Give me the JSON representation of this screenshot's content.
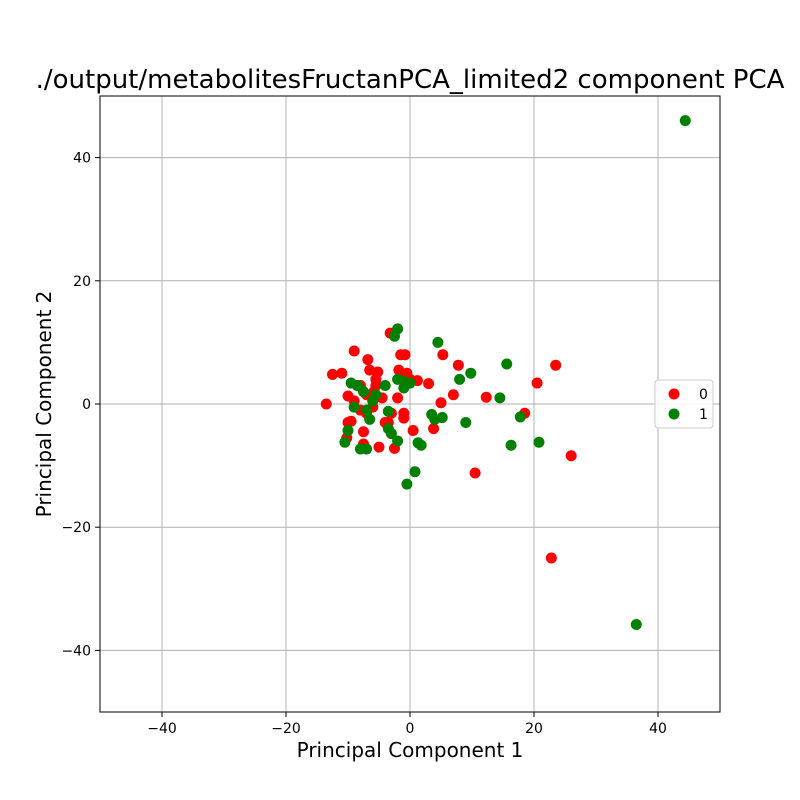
{
  "chart_data": {
    "type": "scatter",
    "title": "./output/metabolitesFructanPCA_limited2 component PCA",
    "xlabel": "Principal Component 1",
    "ylabel": "Principal Component 2",
    "xlim": [
      -50,
      50
    ],
    "ylim": [
      -50,
      50
    ],
    "xticks": [
      -40,
      -20,
      0,
      20,
      40
    ],
    "yticks": [
      -40,
      -20,
      0,
      20,
      40
    ],
    "grid": true,
    "legend_position": "right",
    "series": [
      {
        "name": "0",
        "color": "#ff0000",
        "points": [
          [
            -13.5,
            0
          ],
          [
            -12.5,
            4.8
          ],
          [
            -11,
            5
          ],
          [
            -10,
            1.3
          ],
          [
            -10,
            -3
          ],
          [
            -10.2,
            -5.5
          ],
          [
            -9.5,
            -2.8
          ],
          [
            -9,
            8.6
          ],
          [
            -9,
            0.5
          ],
          [
            -8.5,
            3
          ],
          [
            -8,
            3
          ],
          [
            -8,
            -1
          ],
          [
            -7.5,
            -4.5
          ],
          [
            -7.5,
            -6.5
          ],
          [
            -7,
            1.5
          ],
          [
            -7,
            -1.5
          ],
          [
            -6.8,
            7.2
          ],
          [
            -6.5,
            5.5
          ],
          [
            -6,
            0.5
          ],
          [
            -6,
            -0.5
          ],
          [
            -5.8,
            2
          ],
          [
            -5.5,
            3
          ],
          [
            -5.5,
            4
          ],
          [
            -5.2,
            5.2
          ],
          [
            -5,
            -7
          ],
          [
            -4.5,
            1
          ],
          [
            -4,
            -3
          ],
          [
            -3.5,
            -3
          ],
          [
            -3.2,
            11.5
          ],
          [
            -3,
            -1.5
          ],
          [
            -2.5,
            -7.2
          ],
          [
            -2,
            1
          ],
          [
            -1.8,
            5.5
          ],
          [
            -1.5,
            8
          ],
          [
            -1,
            4
          ],
          [
            -1,
            -1.5
          ],
          [
            -1,
            -2.3
          ],
          [
            -0.8,
            8
          ],
          [
            -0.5,
            5
          ],
          [
            0,
            4
          ],
          [
            0.5,
            -4.3
          ],
          [
            1.2,
            3.8
          ],
          [
            3,
            3.3
          ],
          [
            3.8,
            -4
          ],
          [
            5,
            0.2
          ],
          [
            5.3,
            8
          ],
          [
            7,
            1.5
          ],
          [
            7.8,
            6.3
          ],
          [
            10.5,
            -11.2
          ],
          [
            12.3,
            1.1
          ],
          [
            18.5,
            -1.5
          ],
          [
            20.5,
            3.4
          ],
          [
            22.8,
            -25
          ],
          [
            23.5,
            6.3
          ],
          [
            26,
            -8.4
          ]
        ]
      },
      {
        "name": "1",
        "color": "#008000",
        "points": [
          [
            -10.5,
            -6.2
          ],
          [
            -10,
            -4.3
          ],
          [
            -9.5,
            3.4
          ],
          [
            -9,
            -0.5
          ],
          [
            -8.5,
            3
          ],
          [
            -8,
            -7.3
          ],
          [
            -7.5,
            2
          ],
          [
            -7,
            -1
          ],
          [
            -7,
            -7.3
          ],
          [
            -6.5,
            -2.5
          ],
          [
            -6,
            0.5
          ],
          [
            -5.5,
            1.5
          ],
          [
            -4,
            3
          ],
          [
            -3.5,
            -1.2
          ],
          [
            -3.5,
            -4
          ],
          [
            -3,
            -4.8
          ],
          [
            -2.5,
            11
          ],
          [
            -2,
            12.2
          ],
          [
            -2,
            4
          ],
          [
            -2,
            -6
          ],
          [
            -1,
            2.6
          ],
          [
            -1,
            3.7
          ],
          [
            0,
            3.4
          ],
          [
            -0.5,
            -13
          ],
          [
            0.8,
            -11
          ],
          [
            1.3,
            -6.3
          ],
          [
            1.8,
            -6.7
          ],
          [
            3.5,
            -1.7
          ],
          [
            4,
            -2.5
          ],
          [
            4.5,
            10
          ],
          [
            5.2,
            -2.2
          ],
          [
            8,
            4
          ],
          [
            9,
            -3
          ],
          [
            9.8,
            5
          ],
          [
            14.5,
            1
          ],
          [
            15.6,
            6.5
          ],
          [
            16.3,
            -6.7
          ],
          [
            17.8,
            -2.1
          ],
          [
            20.8,
            -6.2
          ],
          [
            36.5,
            -35.8
          ],
          [
            44.4,
            46
          ]
        ]
      }
    ]
  }
}
